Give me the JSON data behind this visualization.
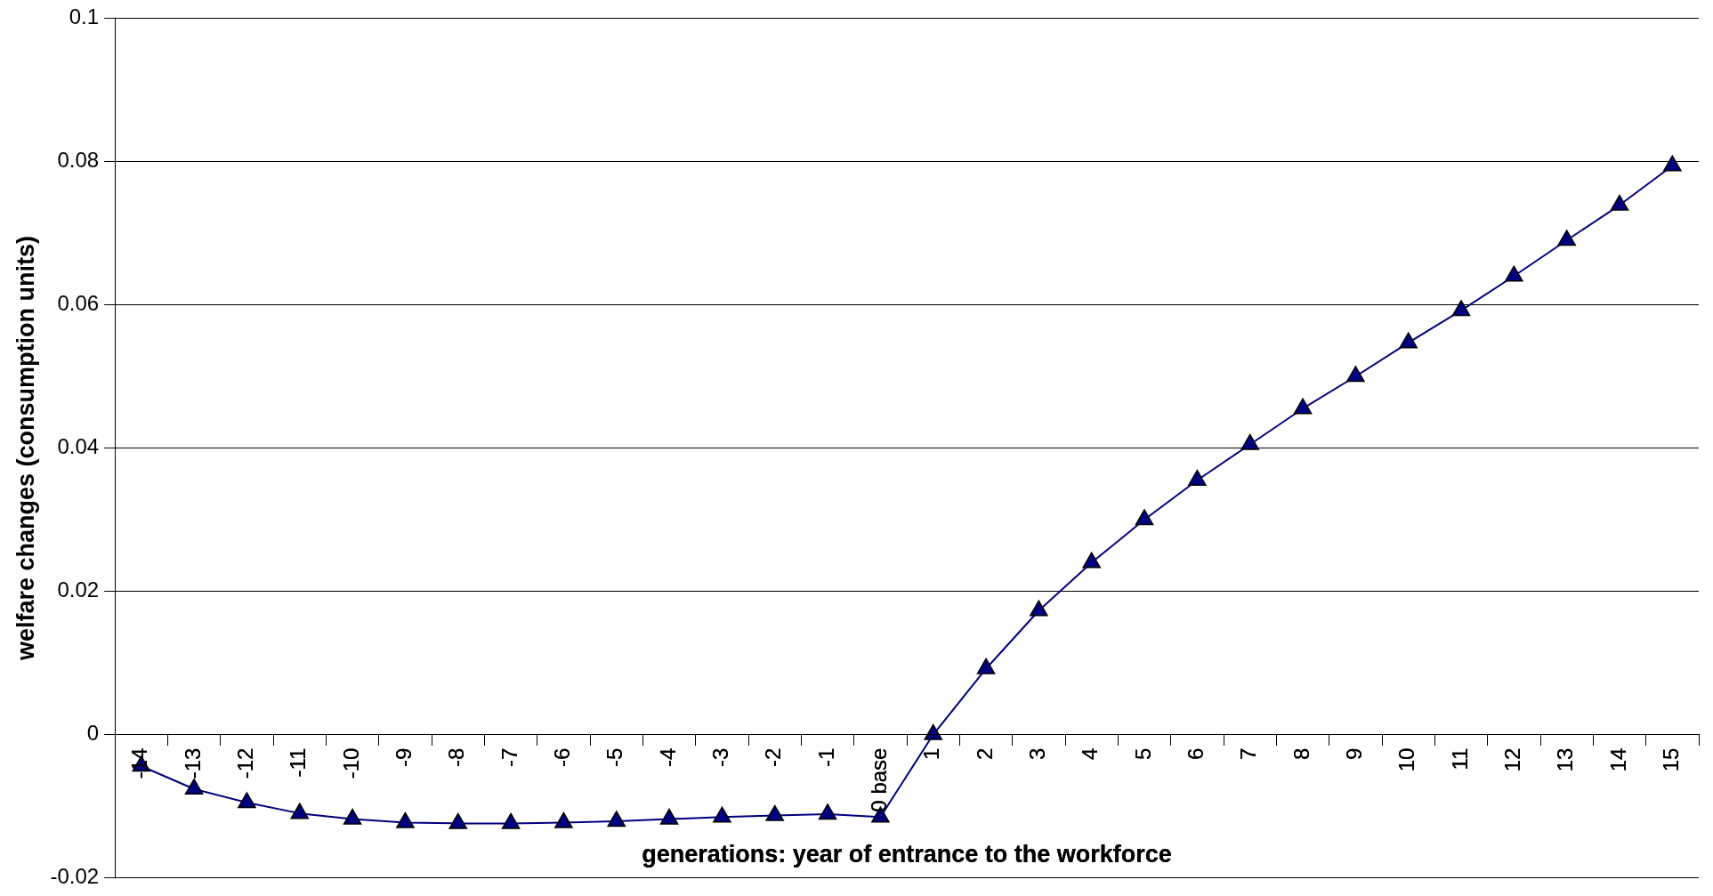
{
  "chart_data": {
    "type": "line",
    "xlabel": "generations: year of entrance to the workforce",
    "ylabel": "welfare changes (consumption units)",
    "categories": [
      "-14",
      "-13",
      "-12",
      "-11",
      "-10",
      "-9",
      "-8",
      "-7",
      "-6",
      "-5",
      "-4",
      "-3",
      "-2",
      "-1",
      "0 base",
      "1",
      "2",
      "3",
      "4",
      "5",
      "6",
      "7",
      "8",
      "9",
      "10",
      "11",
      "12",
      "13",
      "14",
      "15"
    ],
    "series": [
      {
        "color": "#000080",
        "values": [
          -0.0044,
          -0.0076,
          -0.0095,
          -0.011,
          -0.0118,
          -0.0123,
          -0.0124,
          -0.0124,
          -0.0123,
          -0.0121,
          -0.0118,
          -0.0115,
          -0.0113,
          -0.0111,
          -0.0115,
          0,
          0.0092,
          0.0173,
          0.024,
          0.03,
          0.0355,
          0.0405,
          0.0455,
          0.05,
          0.0547,
          0.0592,
          0.064,
          0.069,
          0.0739,
          0.0794
        ]
      }
    ],
    "ylim": [
      -0.02,
      0.1
    ],
    "yticks": [
      -0.02,
      0,
      0.02,
      0.04,
      0.06,
      0.08,
      0.1
    ],
    "grid": "y",
    "legend": false,
    "marker": "triangle",
    "line_style": "solid"
  }
}
